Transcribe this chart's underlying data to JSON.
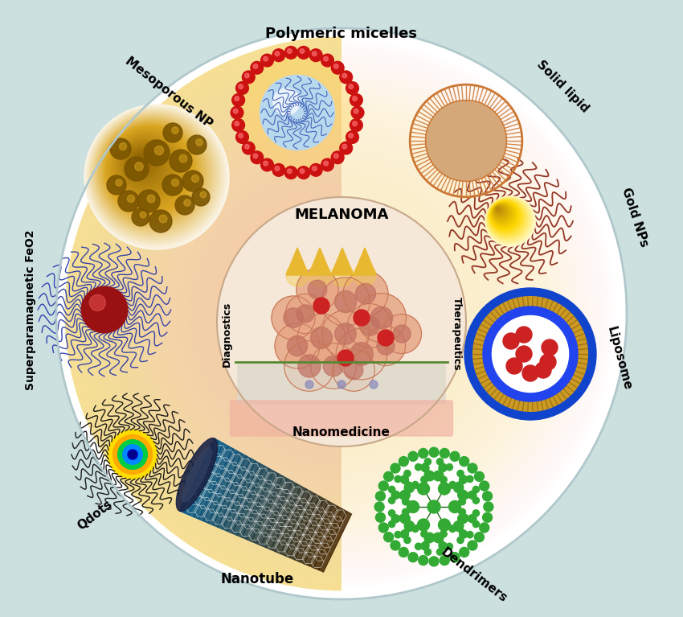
{
  "background_color": "#cde0e0",
  "labels": {
    "polymeric_micelles": "Polymeric micelles",
    "mesoporous_np": "Mesoporous NP",
    "superparamagnetic": "Superparamagnetic FeO2",
    "qdots": "Qdots",
    "nanotube": "Nanotube",
    "dendrimers": "Dendrimers",
    "liposome": "Liposome",
    "gold_nps": "Gold NPs",
    "solid_lipid": "Solid lipid",
    "melanoma": "MELANOMA",
    "diagnostics": "Diagnostics",
    "therapeutics": "Therapeutics",
    "nanomedicine": "Nanomedicine"
  }
}
